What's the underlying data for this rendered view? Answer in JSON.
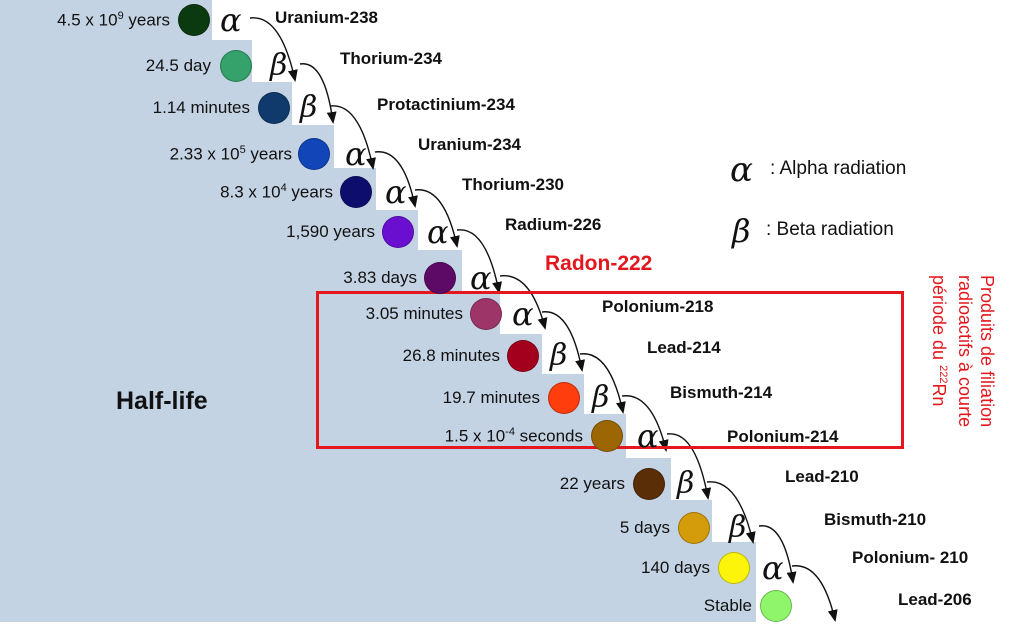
{
  "title": "Half-life",
  "radon_label": "Radon-222",
  "legend": {
    "alpha_symbol": "α",
    "alpha_text": ": Alpha radiation",
    "beta_symbol": "β",
    "beta_text": ": Beta radiation"
  },
  "highlight_note": {
    "line1": "Produits de filiation",
    "line2": "radioactifs à courte",
    "line3_prefix": "période du ",
    "line3_sup": "222",
    "line3_suffix": "Rn"
  },
  "colors": {
    "background_staircase": "#c4d3e4",
    "highlight": "#e3171d",
    "arrow": "#111111"
  },
  "chain": [
    {
      "halflife_pre": "4.5 x 10",
      "halflife_sup": "9",
      "halflife_post": " years",
      "color": "#0c3a10",
      "decay": "α",
      "decay_type": "alpha",
      "product": "Uranium-238"
    },
    {
      "halflife_pre": "24.5 day",
      "halflife_sup": "",
      "halflife_post": "",
      "color": "#34a26a",
      "decay": "β",
      "decay_type": "beta",
      "product": "Thorium-234"
    },
    {
      "halflife_pre": "1.14 minutes",
      "halflife_sup": "",
      "halflife_post": "",
      "color": "#0f3a6b",
      "decay": "β",
      "decay_type": "beta",
      "product": "Protactinium-234"
    },
    {
      "halflife_pre": "2.33 x 10",
      "halflife_sup": "5",
      "halflife_post": " years",
      "color": "#1245b8",
      "decay": "α",
      "decay_type": "alpha",
      "product": "Uranium-234"
    },
    {
      "halflife_pre": "8.3 x 10",
      "halflife_sup": "4",
      "halflife_post": " years",
      "color": "#0d0d6e",
      "decay": "α",
      "decay_type": "alpha",
      "product": "Thorium-230"
    },
    {
      "halflife_pre": "1,590 years",
      "halflife_sup": "",
      "halflife_post": "",
      "color": "#6a0fd0",
      "decay": "α",
      "decay_type": "alpha",
      "product": "Radium-226"
    },
    {
      "halflife_pre": "3.83 days",
      "halflife_sup": "",
      "halflife_post": "",
      "color": "#5c0a66",
      "decay": "α",
      "decay_type": "alpha",
      "product": ""
    },
    {
      "halflife_pre": "3.05 minutes",
      "halflife_sup": "",
      "halflife_post": "",
      "color": "#9e3569",
      "decay": "α",
      "decay_type": "alpha",
      "product": "Polonium-218"
    },
    {
      "halflife_pre": "26.8 minutes",
      "halflife_sup": "",
      "halflife_post": "",
      "color": "#a3001e",
      "decay": "β",
      "decay_type": "beta",
      "product": "Lead-214"
    },
    {
      "halflife_pre": "19.7 minutes",
      "halflife_sup": "",
      "halflife_post": "",
      "color": "#ff3d0d",
      "decay": "β",
      "decay_type": "beta",
      "product": "Bismuth-214"
    },
    {
      "halflife_pre": "1.5 x 10",
      "halflife_sup": "-4",
      "halflife_post": " seconds",
      "color": "#9c6605",
      "decay": "α",
      "decay_type": "alpha",
      "product": "Polonium-214"
    },
    {
      "halflife_pre": "22 years",
      "halflife_sup": "",
      "halflife_post": "",
      "color": "#5a2e07",
      "decay": "β",
      "decay_type": "beta",
      "product": "Lead-210"
    },
    {
      "halflife_pre": "5 days",
      "halflife_sup": "",
      "halflife_post": "",
      "color": "#d49b0a",
      "decay": "β",
      "decay_type": "beta",
      "product": "Bismuth-210"
    },
    {
      "halflife_pre": "140 days",
      "halflife_sup": "",
      "halflife_post": "",
      "color": "#fcf40a",
      "decay": "α",
      "decay_type": "alpha",
      "product": "Polonium- 210"
    },
    {
      "halflife_pre": "Stable",
      "halflife_sup": "",
      "halflife_post": "",
      "color": "#8ff56b",
      "decay": "",
      "decay_type": "none",
      "product": "Lead-206"
    }
  ]
}
